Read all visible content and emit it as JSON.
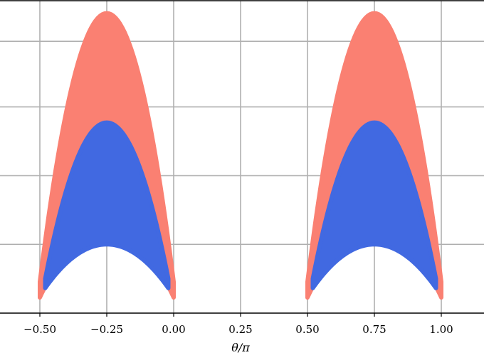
{
  "chart_data": {
    "type": "area",
    "xlabel": "θ/π",
    "xlim": [
      -0.65,
      1.15
    ],
    "ylim": [
      0,
      1
    ],
    "x_ticks": [
      "−0.50",
      "−0.25",
      "0.00",
      "0.25",
      "0.50",
      "0.75",
      "1.00"
    ],
    "x_tick_values": [
      -0.5,
      -0.25,
      0.0,
      0.25,
      0.5,
      0.75,
      1.0
    ],
    "y_tick_values": [
      0.22,
      0.44,
      0.66,
      0.87
    ],
    "y_tick_labels_visible": false,
    "grid": true,
    "colors": {
      "outer_band": "#FA8072",
      "inner_band": "#4169E1",
      "grid": "#b0b0b0",
      "spine": "#000000"
    },
    "series": [
      {
        "band": "outer",
        "color": "#FA8072",
        "centers": [
          -0.25,
          0.75
        ],
        "half_width": 0.25,
        "upper": {
          "base": 0.1,
          "peak": 0.96
        },
        "lower": {
          "base": 0.05,
          "peak": 0.28
        }
      },
      {
        "band": "inner",
        "color": "#4169E1",
        "centers": [
          -0.25,
          0.75
        ],
        "half_width": 0.23,
        "upper": {
          "base": 0.11,
          "peak": 0.61
        },
        "lower": {
          "base": 0.08,
          "peak": 0.22
        }
      }
    ]
  }
}
